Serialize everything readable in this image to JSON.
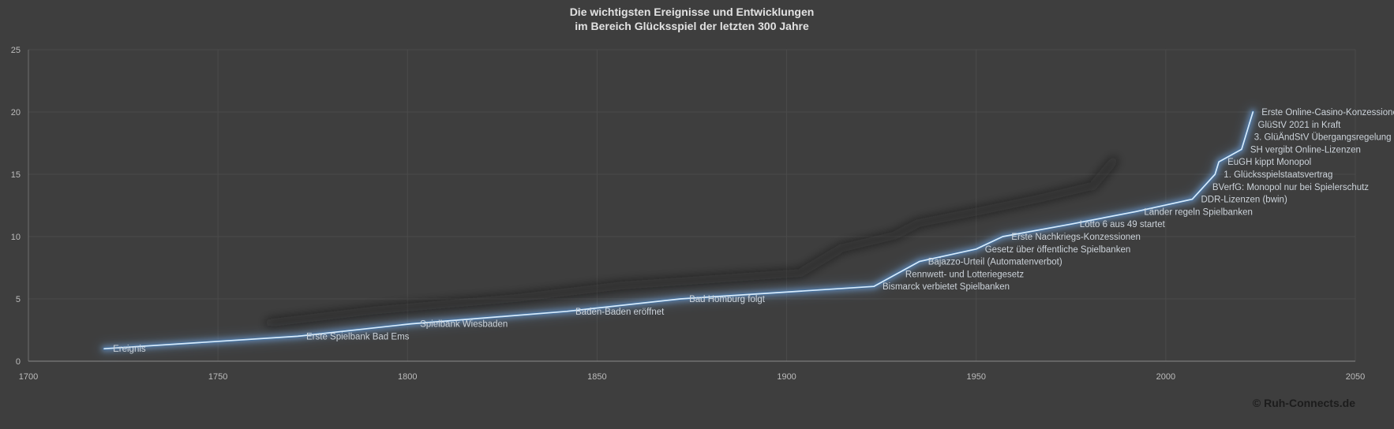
{
  "title": {
    "line1": "Die wichtigsten Ereignisse und Entwicklungen",
    "line2": "im Bereich Glücksspiel der letzten 300 Jahre"
  },
  "footer": {
    "copyright": "© Ruh-Connects.de"
  },
  "colors": {
    "background": "#3e3e3e",
    "gridline": "#4b4b4b",
    "axis": "#8a8a8a",
    "tick_text": "#bdbdbd",
    "title_text": "#e2e2e2",
    "event_label_text": "#ccd3da",
    "line_core": "#d9ebfa",
    "line_mid": "#44719f",
    "line_glow": "#6ea0d8",
    "line_shadow": "#141414",
    "copyright_text": "#1c1c1c"
  },
  "chart_data": {
    "type": "line",
    "title": "Die wichtigsten Ereignisse und Entwicklungen im Bereich Glücksspiel der letzten 300 Jahre",
    "xlabel": "",
    "ylabel": "",
    "xlim": [
      1700,
      2050
    ],
    "ylim": [
      0,
      25
    ],
    "x_ticks": [
      1700,
      1750,
      1800,
      1850,
      1900,
      1950,
      2000,
      2050
    ],
    "y_ticks": [
      0,
      5,
      10,
      15,
      20,
      25
    ],
    "grid": true,
    "legend_position": "none",
    "series_name": "Ereignis",
    "events": [
      {
        "label": "Ereignis",
        "year": 1720,
        "value": 1
      },
      {
        "label": "Erste Spielbank Bad Ems",
        "year": 1771,
        "value": 2
      },
      {
        "label": "Spielbank Wiesbaden",
        "year": 1801,
        "value": 3
      },
      {
        "label": "Baden-Baden eröffnet",
        "year": 1842,
        "value": 4
      },
      {
        "label": "Bad Homburg folgt",
        "year": 1872,
        "value": 5
      },
      {
        "label": "Bismarck verbietet Spielbanken",
        "year": 1923,
        "value": 6
      },
      {
        "label": "Rennwett- und Lotteriegesetz",
        "year": 1929,
        "value": 7
      },
      {
        "label": "Bajazzo-Urteil (Automatenverbot)",
        "year": 1935,
        "value": 8
      },
      {
        "label": "Gesetz über öffentliche Spielbanken",
        "year": 1950,
        "value": 9
      },
      {
        "label": "Erste Nachkriegs-Konzessionen",
        "year": 1957,
        "value": 10
      },
      {
        "label": "Lotto 6 aus 49 startet",
        "year": 1975,
        "value": 11
      },
      {
        "label": "Länder regeln Spielbanken",
        "year": 1992,
        "value": 12
      },
      {
        "label": "DDR-Lizenzen (bwin)",
        "year": 2007,
        "value": 13
      },
      {
        "label": "BVerfG: Monopol nur bei Spielerschutz",
        "year": 2010,
        "value": 14
      },
      {
        "label": "1. Glücksspielstaatsvertrag",
        "year": 2013,
        "value": 15
      },
      {
        "label": "EuGH kippt Monopol",
        "year": 2014,
        "value": 16
      },
      {
        "label": "SH vergibt Online-Lizenzen",
        "year": 2020,
        "value": 17
      },
      {
        "label": "3. GlüÄndStV Übergangsregelung",
        "year": 2021,
        "value": 18
      },
      {
        "label": "GlüStV 2021 in Kraft",
        "year": 2022,
        "value": 19
      },
      {
        "label": "Erste Online-Casino-Konzessionen",
        "year": 2023,
        "value": 20
      }
    ]
  }
}
